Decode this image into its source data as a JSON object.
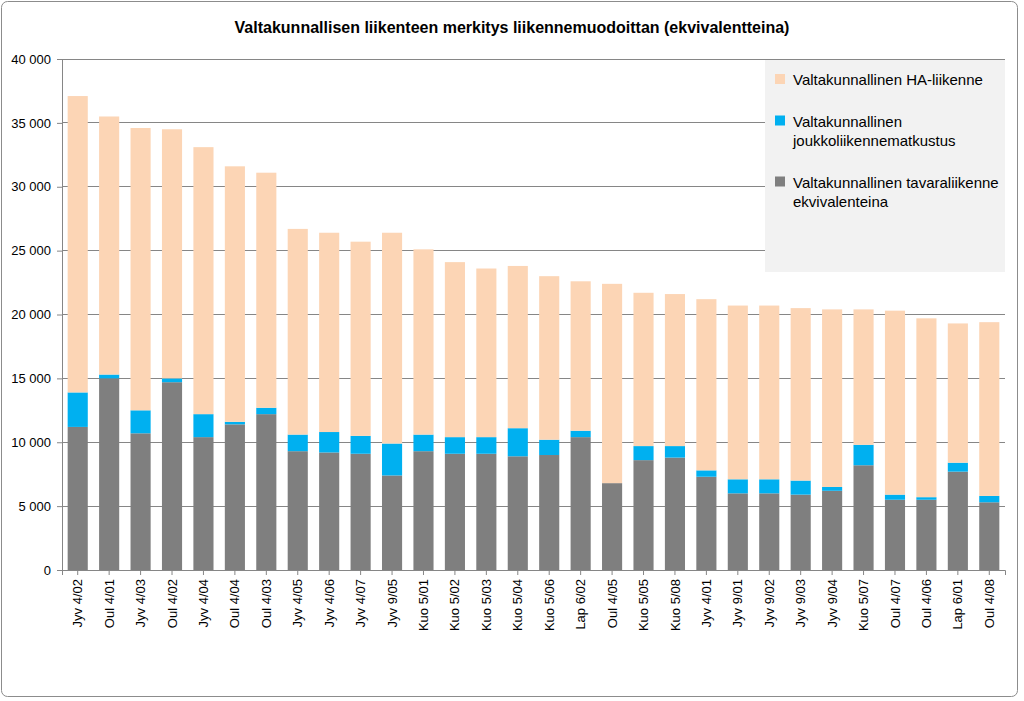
{
  "chart_data": {
    "type": "bar",
    "title": "Valtakunnallisen liikenteen merkitys liikennemuodoittan (ekvivalentteina)",
    "stacked": true,
    "grid": true,
    "legend": "upper right",
    "categories": [
      "Jyv 4/02",
      "Oul 4/01",
      "Jyv 4/03",
      "Oul 4/02",
      "Jyv 4/04",
      "Oul 4/04",
      "Oul 4/03",
      "Jyv 4/05",
      "Jyv 4/06",
      "Jyv 4/07",
      "Jyv 9/05",
      "Kuo 5/01",
      "Kuo 5/02",
      "Kuo 5/03",
      "Kuo 5/04",
      "Kuo 5/06",
      "Lap 6/02",
      "Oul 4/05",
      "Kuo 5/05",
      "Kuo 5/08",
      "Jyv 4/01",
      "Jyv 9/01",
      "Jyv 9/02",
      "Jyv 9/03",
      "Jyv 9/04",
      "Kuo 5/07",
      "Oul 4/07",
      "Oul 4/06",
      "Lap 6/01",
      "Oul 4/08"
    ],
    "series": [
      {
        "name": "Valtakunnallinen tavaraliikenne ekvivalenteina",
        "color": "#7f7f7f",
        "values": [
          11200,
          15000,
          10700,
          14700,
          10400,
          11400,
          12200,
          9300,
          9200,
          9100,
          7400,
          9300,
          9100,
          9100,
          8900,
          9000,
          10400,
          6800,
          8600,
          8800,
          7300,
          6000,
          6000,
          5900,
          6200,
          8200,
          5500,
          5500,
          7700,
          5300
        ]
      },
      {
        "name": "Valtakunnallinen joukkoliikennematkustus",
        "color": "#00b0f0",
        "values": [
          2700,
          300,
          1800,
          300,
          1800,
          200,
          500,
          1300,
          1600,
          1400,
          2500,
          1300,
          1300,
          1300,
          2200,
          1200,
          500,
          0,
          1100,
          900,
          500,
          1100,
          1100,
          1100,
          300,
          1600,
          400,
          200,
          700,
          500
        ]
      },
      {
        "name": "Valtakunnallinen HA-liikenne",
        "color": "#fcd5b5",
        "values": [
          23200,
          20200,
          22100,
          19500,
          20900,
          20000,
          18400,
          16100,
          15600,
          15200,
          16500,
          14500,
          13700,
          13200,
          12700,
          12800,
          11700,
          15600,
          12000,
          11900,
          13400,
          13600,
          13600,
          13500,
          13900,
          10600,
          14400,
          14000,
          10900,
          13600
        ]
      }
    ],
    "ylim": [
      0,
      40000
    ],
    "yticks": [
      0,
      {
        "value": 5000,
        "label": "5 000"
      },
      {
        "value": 10000,
        "label": "10 000"
      },
      {
        "value": 15000,
        "label": "15 000"
      },
      {
        "value": 20000,
        "label": "20 000"
      },
      {
        "value": 25000,
        "label": "25 000"
      },
      {
        "value": 30000,
        "label": "30 000"
      },
      {
        "value": 35000,
        "label": "35 000"
      },
      {
        "value": 40000,
        "label": "40 000"
      }
    ]
  }
}
